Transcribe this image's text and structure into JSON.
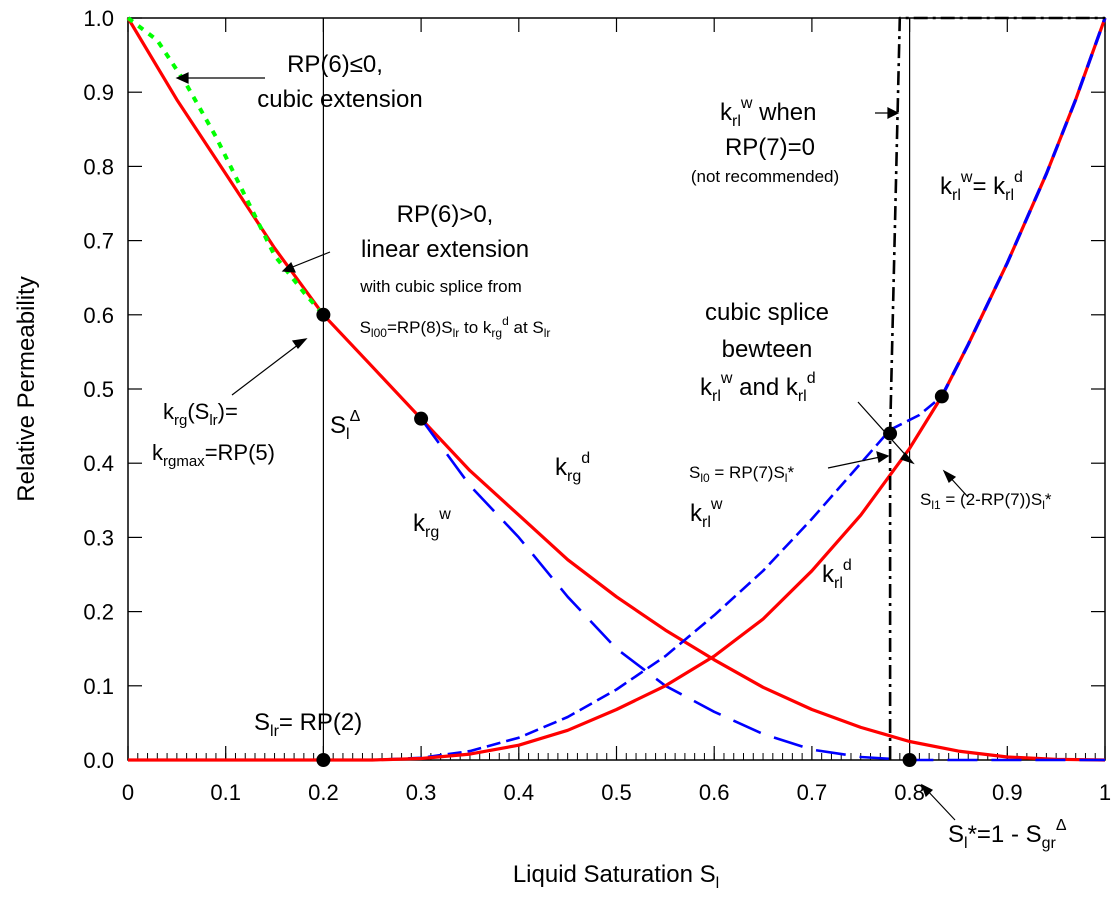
{
  "chart_data": {
    "type": "line",
    "title": "",
    "xlabel": {
      "main": "Liquid Saturation S",
      "sub": "l"
    },
    "ylabel": "Relative Permeability",
    "xlim": [
      0,
      1
    ],
    "ylim": [
      0,
      1
    ],
    "x_ticks": [
      "0",
      "0.1",
      "0.2",
      "0.3",
      "0.4",
      "0.5",
      "0.6",
      "0.7",
      "0.8",
      "0.9",
      "1"
    ],
    "y_ticks": [
      "0.0",
      "0.1",
      "0.2",
      "0.3",
      "0.4",
      "0.5",
      "0.6",
      "0.7",
      "0.8",
      "0.9",
      "1.0"
    ],
    "grid": false,
    "colors": {
      "red": "#ff0000",
      "blue": "#0000ff",
      "green": "#00ff00",
      "black": "#000000"
    },
    "series": [
      {
        "color": "red",
        "style": "solid",
        "x": [
          0.0,
          0.05,
          0.1,
          0.15,
          0.2,
          0.25,
          0.3,
          0.35,
          0.4,
          0.45,
          0.5,
          0.55,
          0.6,
          0.65,
          0.7,
          0.75,
          0.8,
          0.85,
          0.9,
          0.95,
          1.0
        ],
        "y": [
          1.0,
          0.89,
          0.79,
          0.69,
          0.6,
          0.53,
          0.46,
          0.39,
          0.33,
          0.27,
          0.22,
          0.175,
          0.135,
          0.098,
          0.068,
          0.044,
          0.025,
          0.012,
          0.004,
          0.001,
          0.0
        ]
      },
      {
        "color": "green",
        "style": "dotted",
        "x": [
          0.0,
          0.03,
          0.06,
          0.09,
          0.12,
          0.15,
          0.18,
          0.2
        ],
        "y": [
          1.0,
          0.97,
          0.91,
          0.84,
          0.76,
          0.68,
          0.63,
          0.6
        ]
      },
      {
        "color": "blue",
        "style": "long-dash",
        "x": [
          0.3,
          0.35,
          0.4,
          0.45,
          0.5,
          0.55,
          0.6,
          0.65,
          0.7,
          0.75,
          0.8,
          0.85,
          1.0
        ],
        "y": [
          0.46,
          0.37,
          0.3,
          0.22,
          0.15,
          0.1,
          0.065,
          0.035,
          0.014,
          0.004,
          0.0,
          0.0,
          0.0
        ]
      },
      {
        "color": "blue",
        "style": "short-dash",
        "x": [
          0.0,
          0.25,
          0.3,
          0.35,
          0.4,
          0.45,
          0.5,
          0.55,
          0.6,
          0.65,
          0.7,
          0.75,
          0.78,
          0.81,
          0.833
        ],
        "y": [
          0.0,
          0.0,
          0.003,
          0.012,
          0.03,
          0.058,
          0.095,
          0.14,
          0.195,
          0.255,
          0.325,
          0.4,
          0.445,
          0.465,
          0.49
        ]
      },
      {
        "color": "red",
        "style": "solid",
        "x": [
          0.0,
          0.25,
          0.3,
          0.35,
          0.4,
          0.45,
          0.5,
          0.55,
          0.6,
          0.65,
          0.7,
          0.75,
          0.8,
          0.833
        ],
        "y": [
          0.0,
          0.0,
          0.002,
          0.008,
          0.02,
          0.04,
          0.068,
          0.1,
          0.14,
          0.19,
          0.255,
          0.33,
          0.42,
          0.49
        ]
      },
      {
        "color": "red",
        "style": "solid",
        "overlay": "blue-dash",
        "x": [
          0.833,
          0.86,
          0.9,
          0.94,
          0.97,
          1.0
        ],
        "y": [
          0.49,
          0.56,
          0.67,
          0.79,
          0.89,
          1.0
        ]
      },
      {
        "color": "black",
        "style": "dash-dot",
        "x": [
          0.78,
          0.78,
          0.79,
          0.8,
          1.0
        ],
        "y": [
          0.0,
          0.44,
          1.0,
          1.0,
          1.0
        ]
      }
    ],
    "vertical_lines": [
      0.2,
      0.8
    ],
    "points": [
      {
        "x": 0.2,
        "y": 0.6
      },
      {
        "x": 0.3,
        "y": 0.46
      },
      {
        "x": 0.2,
        "y": 0.0
      },
      {
        "x": 0.8,
        "y": 0.0
      },
      {
        "x": 0.78,
        "y": 0.44
      },
      {
        "x": 0.833,
        "y": 0.49
      }
    ],
    "annotations": {
      "rp6_le0_l1": "RP(6)≤0,",
      "rp6_le0_l2": "cubic extension",
      "rp6_gt0_l1": "RP(6)>0,",
      "rp6_gt0_l2": "linear extension",
      "splice_l1": "with cubic splice from",
      "splice_l2_a": "S",
      "splice_l2_a_sub": "l00",
      "splice_l2_b": "=RP(8)S",
      "splice_l2_b_sub": "lr",
      "splice_l2_c": " to k",
      "splice_l2_c_sub": "rg",
      "splice_l2_c_sup": "d",
      "splice_l2_d": " at S",
      "splice_l2_d_sub": "lr",
      "krg_slr_a": "k",
      "krg_slr_sub": "rg",
      "krg_slr_b": "(S",
      "krg_slr_sub2": "lr",
      "krg_slr_c": ")=",
      "krgmax_a": "k",
      "krgmax_sub": "rgmax",
      "krgmax_b": "=RP(5)",
      "sl_delta": "S",
      "sl_delta_sub": "l",
      "sl_delta_sup": "Δ",
      "krgd": "k",
      "krgd_sub": "rg",
      "krgd_sup": "d",
      "krgw": "k",
      "krgw_sub": "rg",
      "krgw_sup": "w",
      "krlw": "k",
      "krlw_sub": "rl",
      "krlw_sup": "w",
      "krld": "k",
      "krld_sub": "rl",
      "krld_sup": "d",
      "krlw_when_a": "k",
      "krlw_when_sub": "rl",
      "krlw_when_sup": "w",
      "krlw_when_b": " when",
      "rp7_zero": "RP(7)=0",
      "not_recommended": "(not recommended)",
      "krlw_eq_a": "k",
      "krlw_eq_sub": "rl",
      "krlw_eq_sup": "w",
      "krlw_eq_b": "= k",
      "krlw_eq_sub2": "rl",
      "krlw_eq_sup2": "d",
      "cubic_splice_l1": "cubic splice",
      "cubic_splice_l2": "bewteen",
      "cubic_splice_l3_a": "k",
      "cubic_splice_l3_sub": "rl",
      "cubic_splice_l3_sup": "w",
      "cubic_splice_l3_b": " and k",
      "cubic_splice_l3_sub2": "rl",
      "cubic_splice_l3_sup2": "d",
      "sl0_a": "S",
      "sl0_sub": "l0",
      "sl0_b": " = RP(7)S",
      "sl0_sub2": "l",
      "sl0_c": "*",
      "sl1_a": "S",
      "sl1_sub": "l1",
      "sl1_b": " = (2-RP(7))S",
      "sl1_sub2": "l",
      "sl1_c": "*",
      "slr_a": "S",
      "slr_sub": "lr",
      "slr_b": "= RP(2)",
      "slstar_a": "S",
      "slstar_sub": "l",
      "slstar_b": "*=1 - S",
      "slstar_sub2": "gr",
      "slstar_sup": "Δ"
    }
  }
}
